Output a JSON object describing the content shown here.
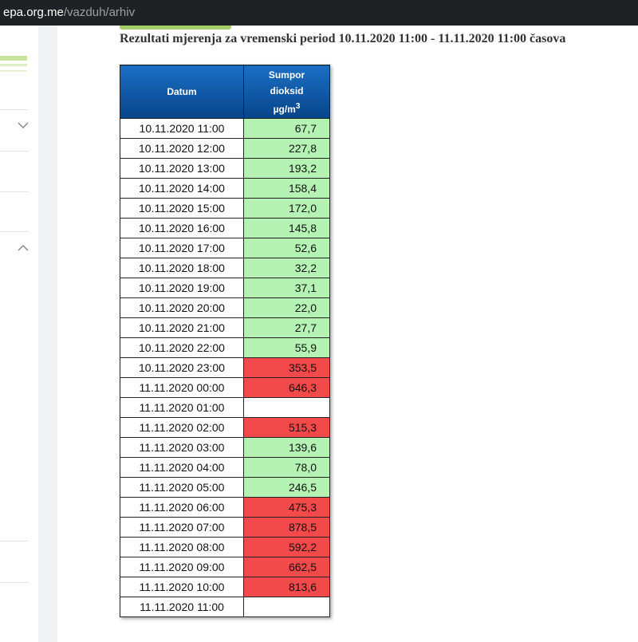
{
  "browser": {
    "url_host": "epa.org.me",
    "url_path": "/vazduh/arhiv"
  },
  "page": {
    "title": "Rezultati mjerenja za vremenski period 10.11.2020 11:00 - 11.11.2020 11:00 časova"
  },
  "table": {
    "header": {
      "datum": "Datum",
      "pollutant_lines": [
        "Sumpor",
        "dioksid"
      ],
      "unit": "µg/m",
      "unit_sup": "3"
    },
    "rows": [
      {
        "datum": "10.11.2020 11:00",
        "value": "67,7",
        "color": "#b5f3b5"
      },
      {
        "datum": "10.11.2020 12:00",
        "value": "227,8",
        "color": "#b5f3b5"
      },
      {
        "datum": "10.11.2020 13:00",
        "value": "193,2",
        "color": "#b5f3b5"
      },
      {
        "datum": "10.11.2020 14:00",
        "value": "158,4",
        "color": "#b5f3b5"
      },
      {
        "datum": "10.11.2020 15:00",
        "value": "172,0",
        "color": "#b5f3b5"
      },
      {
        "datum": "10.11.2020 16:00",
        "value": "145,8",
        "color": "#b5f3b5"
      },
      {
        "datum": "10.11.2020 17:00",
        "value": "52,6",
        "color": "#b5f3b5"
      },
      {
        "datum": "10.11.2020 18:00",
        "value": "32,2",
        "color": "#b5f3b5"
      },
      {
        "datum": "10.11.2020 19:00",
        "value": "37,1",
        "color": "#b5f3b5"
      },
      {
        "datum": "10.11.2020 20:00",
        "value": "22,0",
        "color": "#b5f3b5"
      },
      {
        "datum": "10.11.2020 21:00",
        "value": "27,7",
        "color": "#b5f3b5"
      },
      {
        "datum": "10.11.2020 22:00",
        "value": "55,9",
        "color": "#b5f3b5"
      },
      {
        "datum": "10.11.2020 23:00",
        "value": "353,5",
        "color": "#f24a4a"
      },
      {
        "datum": "11.11.2020 00:00",
        "value": "646,3",
        "color": "#f24a4a"
      },
      {
        "datum": "11.11.2020 01:00",
        "value": null,
        "color": null
      },
      {
        "datum": "11.11.2020 02:00",
        "value": "515,3",
        "color": "#f24a4a"
      },
      {
        "datum": "11.11.2020 03:00",
        "value": "139,6",
        "color": "#b5f3b5"
      },
      {
        "datum": "11.11.2020 04:00",
        "value": "78,0",
        "color": "#b5f3b5"
      },
      {
        "datum": "11.11.2020 05:00",
        "value": "246,5",
        "color": "#b5f3b5"
      },
      {
        "datum": "11.11.2020 06:00",
        "value": "475,3",
        "color": "#f24a4a"
      },
      {
        "datum": "11.11.2020 07:00",
        "value": "878,5",
        "color": "#f24a4a"
      },
      {
        "datum": "11.11.2020 08:00",
        "value": "592,2",
        "color": "#f24a4a"
      },
      {
        "datum": "11.11.2020 09:00",
        "value": "662,5",
        "color": "#f24a4a"
      },
      {
        "datum": "11.11.2020 10:00",
        "value": "813,6",
        "color": "#f24a4a"
      },
      {
        "datum": "11.11.2020 11:00",
        "value": null,
        "color": null
      }
    ]
  }
}
